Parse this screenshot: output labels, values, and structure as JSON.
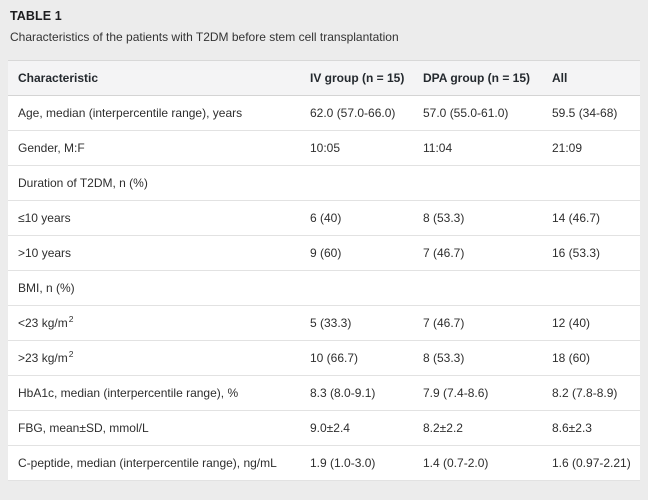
{
  "header": {
    "table_label": "TABLE 1",
    "caption": "Characteristics of the patients with T2DM before stem cell transplantation"
  },
  "table": {
    "columns": [
      "Characteristic",
      "IV group (n = 15)",
      "DPA group (n = 15)",
      "All"
    ],
    "rows": [
      {
        "label": "Age, median (interpercentile range), years",
        "iv": "62.0 (57.0-66.0)",
        "dpa": "57.0 (55.0-61.0)",
        "all": "59.5 (34-68)"
      },
      {
        "label": "Gender, M:F",
        "iv": "10:05",
        "dpa": "11:04",
        "all": "21:09"
      },
      {
        "label": "Duration of T2DM, n (%)",
        "iv": "",
        "dpa": "",
        "all": ""
      },
      {
        "label": "≤10 years",
        "iv": "6 (40)",
        "dpa": "8 (53.3)",
        "all": "14 (46.7)"
      },
      {
        "label": ">10 years",
        "iv": "9 (60)",
        "dpa": "7 (46.7)",
        "all": "16 (53.3)"
      },
      {
        "label": "BMI, n (%)",
        "iv": "",
        "dpa": "",
        "all": ""
      },
      {
        "label": "<23 kg/m",
        "label_sup": "2",
        "iv": "5 (33.3)",
        "dpa": "7 (46.7)",
        "all": "12 (40)"
      },
      {
        "label": ">23 kg/m",
        "label_sup": "2",
        "iv": "10 (66.7)",
        "dpa": "8 (53.3)",
        "all": "18 (60)"
      },
      {
        "label": "HbA1c, median (interpercentile range), %",
        "iv": "8.3 (8.0-9.1)",
        "dpa": "7.9 (7.4-8.6)",
        "all": "8.2 (7.8-8.9)"
      },
      {
        "label": "FBG, mean±SD, mmol/L",
        "iv": "9.0±2.4",
        "dpa": "8.2±2.2",
        "all": "8.6±2.3"
      },
      {
        "label": "C-peptide, median (interpercentile range), ng/mL",
        "iv": "1.9 (1.0-3.0)",
        "dpa": "1.4 (0.7-2.0)",
        "all": "1.6 (0.97-2.21)"
      }
    ]
  },
  "colors": {
    "page_bg": "#ececec",
    "table_bg": "#ffffff",
    "header_bg": "#f4f4f5",
    "row_border": "#e2e2e2",
    "text": "#2e2e2e"
  }
}
